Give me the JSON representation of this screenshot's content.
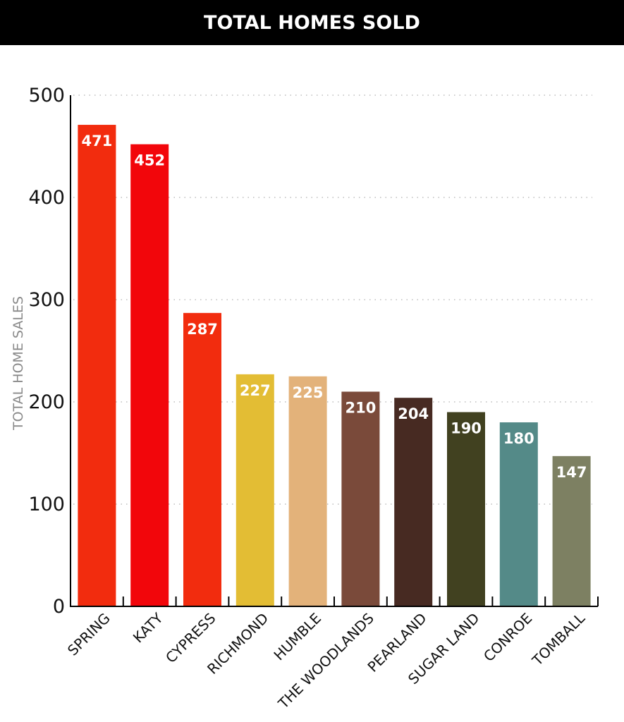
{
  "header": {
    "title": "TOTAL HOMES SOLD"
  },
  "chart_data": {
    "type": "bar",
    "title": "TOTAL HOMES SOLD",
    "xlabel": "",
    "ylabel": "TOTAL HOME SALES",
    "ylim": [
      0,
      500
    ],
    "yticks": [
      0,
      100,
      200,
      300,
      400,
      500
    ],
    "grid": true,
    "categories": [
      "SPRING",
      "KATY",
      "CYPRESS",
      "RICHMOND",
      "HUMBLE",
      "THE WOODLANDS",
      "PEARLAND",
      "SUGAR LAND",
      "CONROE",
      "TOMBALL"
    ],
    "values": [
      471,
      452,
      287,
      227,
      225,
      210,
      204,
      190,
      180,
      147
    ],
    "colors": [
      "#f22c0e",
      "#f2060b",
      "#f22c0e",
      "#e3bd34",
      "#e3b27a",
      "#7a4a3a",
      "#472a22",
      "#414120",
      "#548a88",
      "#7d8062"
    ]
  }
}
